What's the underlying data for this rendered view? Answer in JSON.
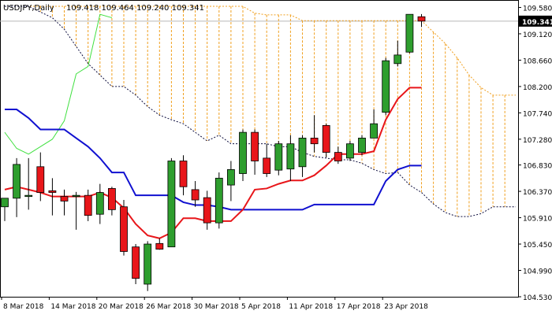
{
  "header": {
    "symbol": "USDJPY,Daily",
    "ohlc": "109.418 109.464 109.240 109.341"
  },
  "chart_data": {
    "type": "candlestick",
    "title": "USDJPY,Daily",
    "ylim": [
      104.53,
      109.71
    ],
    "y_ticks": [
      "109.580",
      "109.120",
      "108.660",
      "108.200",
      "107.740",
      "107.280",
      "106.830",
      "106.370",
      "105.910",
      "105.450",
      "104.990",
      "104.530"
    ],
    "x_ticks": [
      "8 Mar 2018",
      "14 Mar 2018",
      "20 Mar 2018",
      "26 Mar 2018",
      "30 Mar 2018",
      "5 Apr 2018",
      "11 Apr 2018",
      "17 Apr 2018",
      "23 Apr 2018"
    ],
    "x_tick_index": [
      0,
      4,
      8,
      12,
      16,
      20,
      24,
      28,
      32
    ],
    "current_price": {
      "label": "109.341",
      "value": 109.341
    },
    "colors": {
      "bull": "#2e9e2e",
      "bear": "#e8161a",
      "tenkan": "#e8161a",
      "kijun": "#1010d0",
      "chikou": "#3ee03e",
      "span": "#0b0b3c",
      "cloud": "#f0a020",
      "grid": "#d9d9d9"
    },
    "candles": [
      {
        "o": 106.1,
        "h": 106.25,
        "l": 105.85,
        "c": 106.25
      },
      {
        "o": 106.25,
        "h": 106.95,
        "l": 105.92,
        "c": 106.84
      },
      {
        "o": 106.3,
        "h": 106.95,
        "l": 106.05,
        "c": 106.3
      },
      {
        "o": 106.8,
        "h": 107.05,
        "l": 106.2,
        "c": 106.35
      },
      {
        "o": 106.38,
        "h": 106.6,
        "l": 105.95,
        "c": 106.35
      },
      {
        "o": 106.28,
        "h": 106.4,
        "l": 105.95,
        "c": 106.2
      },
      {
        "o": 106.3,
        "h": 106.36,
        "l": 105.7,
        "c": 106.3
      },
      {
        "o": 106.3,
        "h": 106.4,
        "l": 105.85,
        "c": 105.95
      },
      {
        "o": 105.97,
        "h": 106.5,
        "l": 105.8,
        "c": 106.35
      },
      {
        "o": 106.42,
        "h": 106.45,
        "l": 105.95,
        "c": 106.05
      },
      {
        "o": 106.1,
        "h": 106.22,
        "l": 105.25,
        "c": 105.32
      },
      {
        "o": 105.4,
        "h": 105.45,
        "l": 104.75,
        "c": 104.85
      },
      {
        "o": 104.75,
        "h": 105.5,
        "l": 104.63,
        "c": 105.45
      },
      {
        "o": 105.46,
        "h": 105.55,
        "l": 105.35,
        "c": 105.36
      },
      {
        "o": 105.4,
        "h": 106.95,
        "l": 105.4,
        "c": 106.9
      },
      {
        "o": 106.9,
        "h": 107.0,
        "l": 106.3,
        "c": 106.45
      },
      {
        "o": 106.4,
        "h": 106.55,
        "l": 106.1,
        "c": 106.22
      },
      {
        "o": 106.26,
        "h": 106.38,
        "l": 105.7,
        "c": 105.82
      },
      {
        "o": 105.82,
        "h": 106.7,
        "l": 105.72,
        "c": 106.6
      },
      {
        "o": 106.48,
        "h": 106.9,
        "l": 106.2,
        "c": 106.75
      },
      {
        "o": 106.68,
        "h": 107.45,
        "l": 106.55,
        "c": 107.4
      },
      {
        "o": 107.4,
        "h": 107.45,
        "l": 106.66,
        "c": 106.9
      },
      {
        "o": 106.95,
        "h": 107.2,
        "l": 106.62,
        "c": 106.68
      },
      {
        "o": 106.74,
        "h": 107.25,
        "l": 106.65,
        "c": 107.2
      },
      {
        "o": 106.76,
        "h": 107.35,
        "l": 106.55,
        "c": 107.2
      },
      {
        "o": 106.8,
        "h": 107.35,
        "l": 106.62,
        "c": 107.3
      },
      {
        "o": 107.3,
        "h": 107.7,
        "l": 107.05,
        "c": 107.2
      },
      {
        "o": 107.52,
        "h": 107.55,
        "l": 106.96,
        "c": 107.05
      },
      {
        "o": 107.05,
        "h": 107.15,
        "l": 106.85,
        "c": 106.9
      },
      {
        "o": 106.95,
        "h": 107.25,
        "l": 106.9,
        "c": 107.2
      },
      {
        "o": 107.05,
        "h": 107.35,
        "l": 107.0,
        "c": 107.3
      },
      {
        "o": 107.3,
        "h": 107.8,
        "l": 107.3,
        "c": 107.55
      },
      {
        "o": 107.75,
        "h": 108.7,
        "l": 107.7,
        "c": 108.65
      },
      {
        "o": 108.6,
        "h": 109.0,
        "l": 108.55,
        "c": 108.75
      },
      {
        "o": 108.8,
        "h": 109.46,
        "l": 108.78,
        "c": 109.46
      },
      {
        "o": 109.418,
        "h": 109.464,
        "l": 109.24,
        "c": 109.341
      }
    ],
    "tenkan": [
      106.4,
      106.45,
      106.4,
      106.35,
      106.28,
      106.28,
      106.28,
      106.28,
      106.35,
      106.26,
      106.08,
      105.8,
      105.6,
      105.55,
      105.65,
      105.9,
      105.9,
      105.85,
      105.85,
      105.85,
      106.05,
      106.4,
      106.42,
      106.5,
      106.56,
      106.56,
      106.65,
      106.82,
      107.02,
      107.02,
      107.02,
      107.07,
      107.62,
      107.98,
      108.18,
      108.18
    ],
    "kijun": [
      107.8,
      107.8,
      107.65,
      107.45,
      107.45,
      107.45,
      107.3,
      107.15,
      106.95,
      106.7,
      106.7,
      106.3,
      106.3,
      106.3,
      106.3,
      106.18,
      106.13,
      106.13,
      106.1,
      106.05,
      106.05,
      106.05,
      106.05,
      106.05,
      106.05,
      106.05,
      106.14,
      106.14,
      106.14,
      106.14,
      106.14,
      106.14,
      106.55,
      106.75,
      106.82,
      106.82
    ],
    "chikou": [
      107.4,
      107.12,
      107.02,
      107.15,
      107.28,
      107.6,
      108.42,
      108.55,
      109.46,
      109.4
    ],
    "senkou_a": [
      109.6,
      109.6,
      109.6,
      109.6,
      109.6,
      109.6,
      109.6,
      109.6,
      109.6,
      109.6,
      109.6,
      109.6,
      109.6,
      109.6,
      109.6,
      109.6,
      109.6,
      109.6,
      109.6,
      109.6,
      109.6,
      109.48,
      109.45,
      109.45,
      109.45,
      109.35,
      109.35,
      109.35,
      109.35,
      109.35,
      109.35,
      109.35,
      109.35,
      109.35,
      109.35,
      109.35,
      109.15,
      108.95,
      108.7,
      108.4,
      108.18,
      108.05,
      108.05,
      108.05
    ],
    "senkou_b": [
      109.6,
      109.6,
      109.6,
      109.5,
      109.4,
      109.2,
      108.9,
      108.6,
      108.4,
      108.2,
      108.2,
      108.05,
      107.85,
      107.7,
      107.62,
      107.55,
      107.4,
      107.25,
      107.35,
      107.2,
      107.2,
      107.2,
      107.2,
      107.15,
      107.15,
      107.05,
      106.98,
      106.95,
      106.92,
      106.92,
      106.86,
      106.75,
      106.68,
      106.7,
      106.48,
      106.35,
      106.15,
      106.0,
      105.93,
      105.93,
      105.98,
      106.1,
      106.1,
      106.1
    ]
  }
}
